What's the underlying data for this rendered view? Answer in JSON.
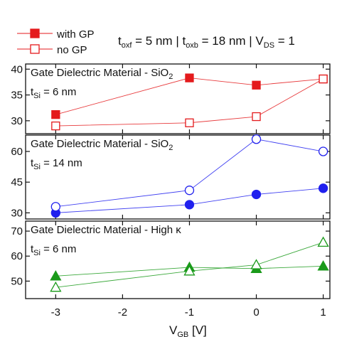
{
  "header": {
    "conditions": [
      {
        "sym": "t",
        "sub": "oxf",
        "rest": " = 5 nm | "
      },
      {
        "sym": "t",
        "sub": "oxb",
        "rest": " = 18 nm | "
      },
      {
        "sym": "V",
        "sub": "DS",
        "rest": " = 1"
      }
    ]
  },
  "legend": [
    {
      "label": "with GP",
      "filled": true,
      "marker": "square",
      "color": "#e41a1c"
    },
    {
      "label": "no GP",
      "filled": false,
      "marker": "square",
      "color": "#e41a1c"
    }
  ],
  "x_axis": {
    "label_main": "V",
    "label_sub": "GB",
    "label_unit": " [V]",
    "ticks": [
      -3,
      -2,
      -1,
      0,
      1
    ],
    "tick_labels": [
      "-3",
      "-2",
      "-1",
      "0",
      "1"
    ],
    "xlim": [
      -3.45,
      1.1
    ]
  },
  "chart_data": [
    {
      "type": "line",
      "title": "Gate Dielectric Material - SiO",
      "title_sub": "2",
      "title_symbol": "",
      "tsi_main": "t",
      "tsi_sub": "Si",
      "tsi_value": " = 6 nm",
      "ylim": [
        27.5,
        41
      ],
      "yticks": [
        30,
        35,
        40
      ],
      "ytick_labels": [
        "30",
        "35",
        "40"
      ],
      "marker": "square",
      "color": "#e41a1c",
      "x": [
        -3,
        -1,
        0,
        1
      ],
      "series": [
        {
          "name": "with GP",
          "filled": true,
          "values": [
            31.2,
            38.3,
            36.9,
            38.1
          ]
        },
        {
          "name": "no GP",
          "filled": false,
          "values": [
            29.0,
            29.6,
            30.8,
            38.1
          ]
        }
      ]
    },
    {
      "type": "line",
      "title": "Gate Dielectric Material - SiO",
      "title_sub": "2",
      "title_symbol": "",
      "tsi_main": "t",
      "tsi_sub": "Si",
      "tsi_value": " = 14 nm",
      "ylim": [
        27,
        68
      ],
      "yticks": [
        30,
        45,
        60
      ],
      "ytick_labels": [
        "30",
        "45",
        "60"
      ],
      "marker": "circle",
      "color": "#2020ee",
      "x": [
        -3,
        -1,
        0,
        1
      ],
      "series": [
        {
          "name": "with GP",
          "filled": true,
          "values": [
            30,
            34,
            39,
            42
          ]
        },
        {
          "name": "no GP",
          "filled": false,
          "values": [
            33,
            41,
            66,
            60
          ]
        }
      ]
    },
    {
      "type": "line",
      "title": "Gate Dielectric Material - High ",
      "title_sub": "",
      "title_symbol": "κ",
      "tsi_main": "t",
      "tsi_sub": "Si",
      "tsi_value": " = 6 nm",
      "ylim": [
        43,
        74
      ],
      "yticks": [
        50,
        60,
        70
      ],
      "ytick_labels": [
        "50",
        "60",
        "70"
      ],
      "marker": "triangle",
      "color": "#1a9a1a",
      "x": [
        -3,
        -1,
        0,
        1
      ],
      "series": [
        {
          "name": "with GP",
          "filled": true,
          "values": [
            52,
            55.5,
            55,
            56
          ]
        },
        {
          "name": "no GP",
          "filled": false,
          "values": [
            47.5,
            54,
            56.5,
            65.5
          ]
        }
      ]
    }
  ]
}
